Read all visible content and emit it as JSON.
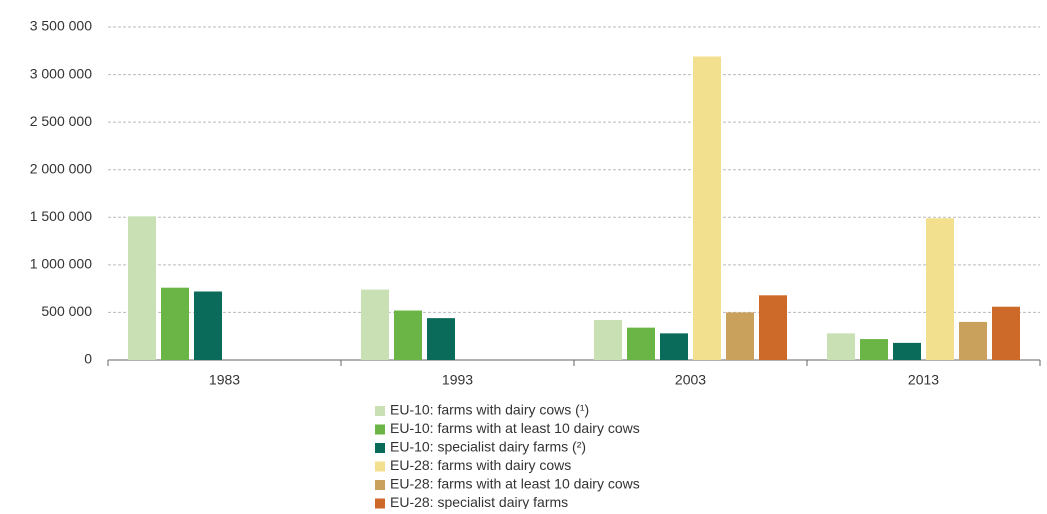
{
  "chart_data": {
    "type": "bar",
    "categories": [
      "1983",
      "1993",
      "2003",
      "2013"
    ],
    "series": [
      {
        "name": "EU-10: farms with dairy cows (¹)",
        "color": "#c8e0b4",
        "values": [
          1510000,
          740000,
          420000,
          280000
        ]
      },
      {
        "name": "EU-10: farms with at least 10 dairy cows",
        "color": "#6ab546",
        "values": [
          760000,
          520000,
          340000,
          220000
        ]
      },
      {
        "name": "EU-10: specialist dairy farms (²)",
        "color": "#0b6b5a",
        "values": [
          720000,
          440000,
          280000,
          180000
        ]
      },
      {
        "name": "EU-28: farms with dairy cows",
        "color": "#f3e08f",
        "values": [
          null,
          null,
          3190000,
          1490000
        ]
      },
      {
        "name": "EU-28: farms with at least 10 dairy cows",
        "color": "#c9a05c",
        "values": [
          null,
          null,
          500000,
          400000
        ]
      },
      {
        "name": "EU-28: specialist dairy farms",
        "color": "#cd6a29",
        "values": [
          null,
          null,
          680000,
          560000
        ]
      }
    ],
    "ylim": [
      0,
      3500000
    ],
    "yticks": [
      0,
      {
        "value": 500000,
        "label": "500 000"
      },
      {
        "value": 1000000,
        "label": "1 000 000"
      },
      {
        "value": 1500000,
        "label": "1 500 000"
      },
      {
        "value": 2000000,
        "label": "2 000 000"
      },
      {
        "value": 2500000,
        "label": "2 500 000"
      },
      {
        "value": 3000000,
        "label": "3 000 000"
      },
      {
        "value": 3500000,
        "label": "3 500 000"
      }
    ],
    "grid": true
  }
}
